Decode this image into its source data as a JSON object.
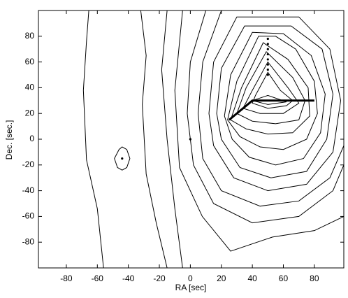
{
  "chart_data": {
    "type": "contour",
    "xlabel": "RA [sec]",
    "ylabel": "Dec. [sec.]",
    "xlim": [
      -98,
      99
    ],
    "ylim": [
      -100,
      100
    ],
    "xticks": [
      -80,
      -60,
      -40,
      -20,
      0,
      20,
      40,
      60,
      80
    ],
    "yticks": [
      -80,
      -60,
      -40,
      -20,
      0,
      20,
      40,
      60,
      80
    ],
    "color": "#000000",
    "contours": [
      {
        "x": [
          -65.5,
          -67,
          -69,
          -67,
          -60,
          -56
        ],
        "y": [
          100,
          76,
          38,
          -16,
          -54,
          -100
        ],
        "closed": false
      },
      {
        "x": [
          -32,
          -28.5,
          -31,
          -28.5,
          -22,
          -15
        ],
        "y": [
          100,
          65,
          27,
          -27,
          -65,
          -100
        ],
        "closed": false
      },
      {
        "x": [
          -15,
          -18.5,
          -15,
          -10,
          -5
        ],
        "y": [
          100,
          54,
          0,
          -54,
          -100
        ],
        "closed": false
      },
      {
        "x": [
          -49,
          -46,
          -44,
          -41,
          -39,
          -41,
          -44,
          -47
        ],
        "y": [
          -15,
          -8,
          -6,
          -8,
          -15,
          -22,
          -24,
          -22
        ],
        "closed": true
      },
      {
        "x": [
          -5,
          -10,
          -7,
          7.7,
          26,
          53,
          80,
          99
        ],
        "y": [
          100,
          38,
          -22,
          -60,
          -87,
          -76,
          -71,
          -60
        ],
        "closed": false
      },
      {
        "x": [
          10,
          0,
          -2,
          2,
          15,
          40,
          70,
          92,
          99
        ],
        "y": [
          100,
          60,
          20,
          -20,
          -50,
          -65,
          -60,
          -40,
          -20
        ],
        "closed": false
      },
      {
        "x": [
          20,
          8,
          5,
          8,
          20,
          45,
          70,
          90,
          99
        ],
        "y": [
          100,
          60,
          20,
          -15,
          -40,
          -52,
          -48,
          -30,
          -5
        ],
        "closed": false
      },
      {
        "x": [
          30,
          15,
          12,
          15,
          28,
          50,
          75,
          92,
          97,
          90,
          70
        ],
        "y": [
          95,
          60,
          20,
          -5,
          -30,
          -40,
          -35,
          -10,
          30,
          70,
          95
        ],
        "closed": true
      },
      {
        "x": [
          35,
          20,
          17,
          20,
          32,
          52,
          75,
          88,
          92,
          85,
          65
        ],
        "y": [
          88,
          55,
          20,
          0,
          -22,
          -30,
          -25,
          0,
          35,
          70,
          88
        ],
        "closed": true
      },
      {
        "x": [
          40,
          26,
          22,
          27,
          38,
          55,
          73,
          84,
          87,
          78,
          60
        ],
        "y": [
          83,
          50,
          18,
          0,
          -14,
          -20,
          -15,
          5,
          35,
          65,
          82
        ],
        "closed": true
      },
      {
        "x": [
          44,
          30,
          24,
          32,
          45,
          60,
          75,
          82,
          80,
          68,
          55
        ],
        "y": [
          80,
          45,
          15,
          2,
          -6,
          -8,
          0,
          20,
          45,
          70,
          80
        ],
        "closed": true
      },
      {
        "x": [
          47,
          33,
          26,
          36,
          50,
          66,
          77,
          76,
          63
        ],
        "y": [
          75,
          40,
          15,
          8,
          4,
          5,
          18,
          40,
          62
        ],
        "closed": true
      },
      {
        "x": [
          49,
          36,
          30,
          40,
          55,
          70,
          74,
          66
        ],
        "y": [
          68,
          40,
          20,
          14,
          12,
          15,
          30,
          48
        ],
        "closed": true
      },
      {
        "x": [
          50,
          40,
          34,
          45,
          60,
          70,
          63
        ],
        "y": [
          60,
          38,
          24,
          20,
          20,
          28,
          40
        ],
        "closed": true
      },
      {
        "x": [
          50,
          42,
          40,
          50,
          62,
          66,
          58
        ],
        "y": [
          52,
          34,
          28,
          24,
          26,
          30,
          38
        ],
        "closed": true
      },
      {
        "x": [
          40,
          50,
          62,
          50
        ],
        "y": [
          30,
          27,
          29,
          34
        ],
        "closed": true
      }
    ],
    "points": {
      "x": [
        0,
        -44,
        50,
        50,
        50,
        50,
        50,
        50,
        50,
        50
      ],
      "y": [
        0,
        -15,
        50,
        54,
        58,
        62,
        66,
        70,
        74,
        78
      ]
    },
    "ridge": {
      "x": [
        25,
        40,
        80
      ],
      "y": [
        15,
        30,
        30
      ]
    }
  }
}
